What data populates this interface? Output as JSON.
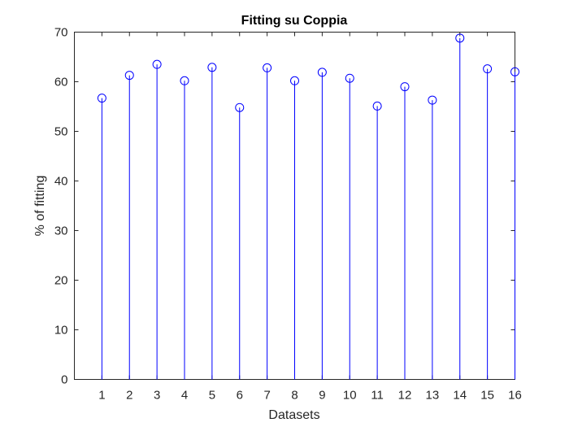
{
  "chart_data": {
    "type": "stem",
    "title": "Fitting su Coppia",
    "xlabel": "Datasets",
    "ylabel": "% of fitting",
    "xlim": [
      0,
      16
    ],
    "ylim": [
      0,
      70
    ],
    "x": [
      1,
      2,
      3,
      4,
      5,
      6,
      7,
      8,
      9,
      10,
      11,
      12,
      13,
      14,
      15,
      16
    ],
    "xticks": [
      "1",
      "2",
      "3",
      "4",
      "5",
      "6",
      "7",
      "8",
      "9",
      "10",
      "11",
      "12",
      "13",
      "14",
      "15",
      "16"
    ],
    "yticks": [
      "0",
      "10",
      "20",
      "30",
      "40",
      "50",
      "60",
      "70"
    ],
    "series": [
      {
        "values": [
          56.7,
          61.3,
          63.5,
          60.2,
          62.9,
          54.8,
          62.8,
          60.2,
          61.9,
          60.7,
          55.1,
          59.0,
          56.3,
          68.8,
          62.6,
          62.0
        ],
        "color": "#0000ff",
        "marker": "circle"
      }
    ],
    "grid": false,
    "legend": "none"
  }
}
